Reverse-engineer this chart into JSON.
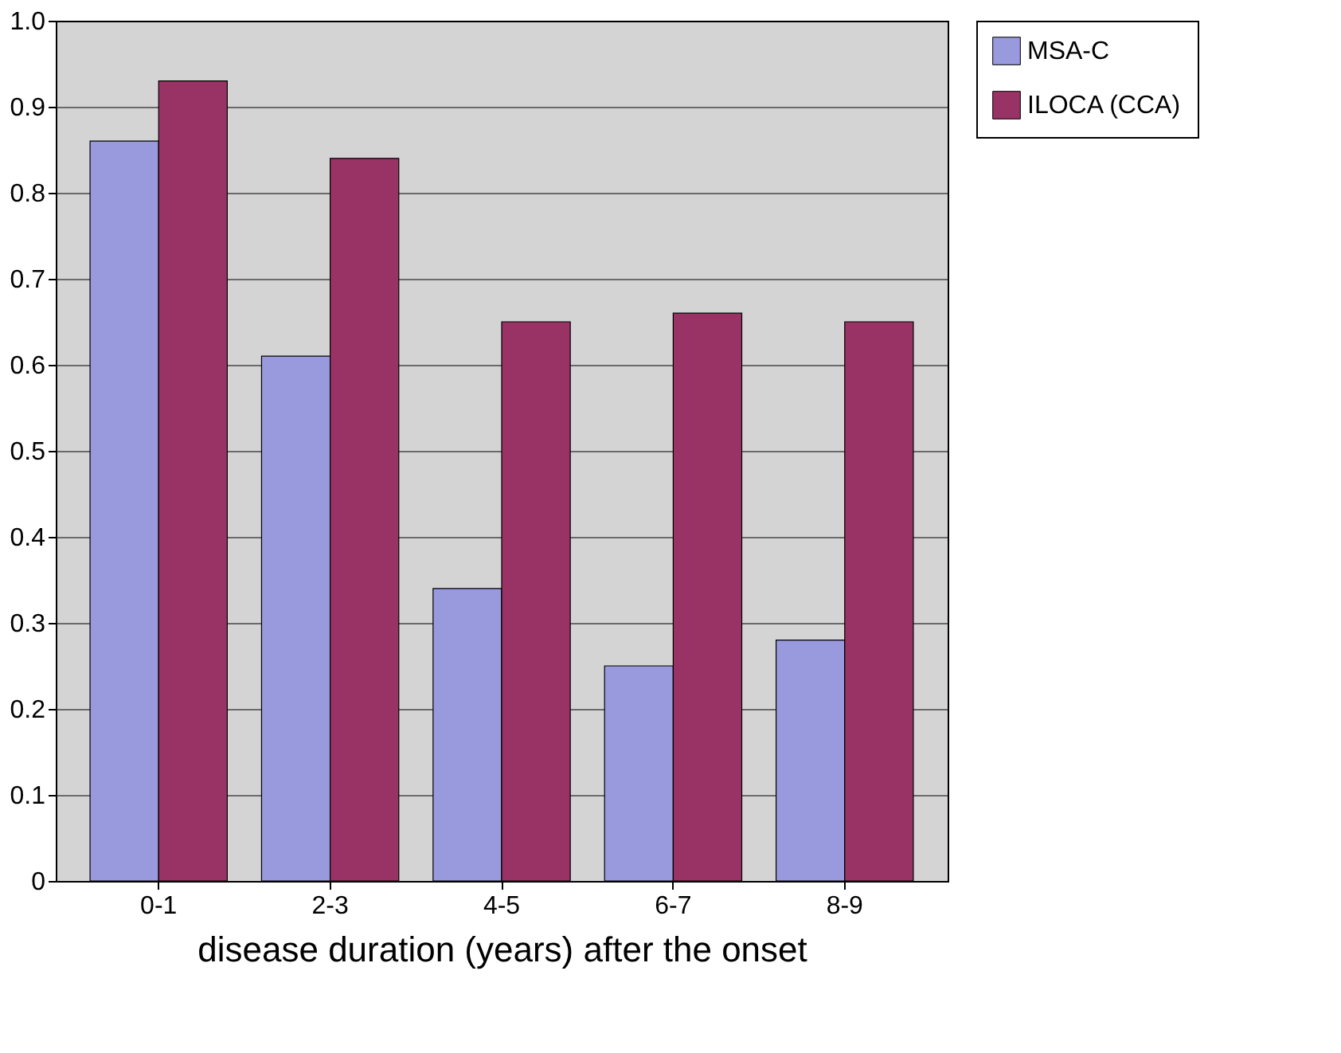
{
  "chart_data": {
    "type": "bar",
    "xlabel": "disease duration (years) after the onset",
    "categories": [
      "0-1",
      "2-3",
      "4-5",
      "6-7",
      "8-9"
    ],
    "series": [
      {
        "name": "MSA-C",
        "color": "#9999dd",
        "values": [
          0.86,
          0.61,
          0.34,
          0.25,
          0.28
        ]
      },
      {
        "name": "ILOCA (CCA)",
        "color": "#993366",
        "values": [
          0.93,
          0.84,
          0.65,
          0.66,
          0.65
        ]
      }
    ],
    "ylim": [
      0,
      1
    ],
    "yticks": [
      0,
      0.1,
      0.2,
      0.3,
      0.4,
      0.5,
      0.6,
      0.7,
      0.8,
      0.9,
      {
        "value": 1,
        "label": "1.0"
      }
    ],
    "grid": "y",
    "legend": "right"
  }
}
